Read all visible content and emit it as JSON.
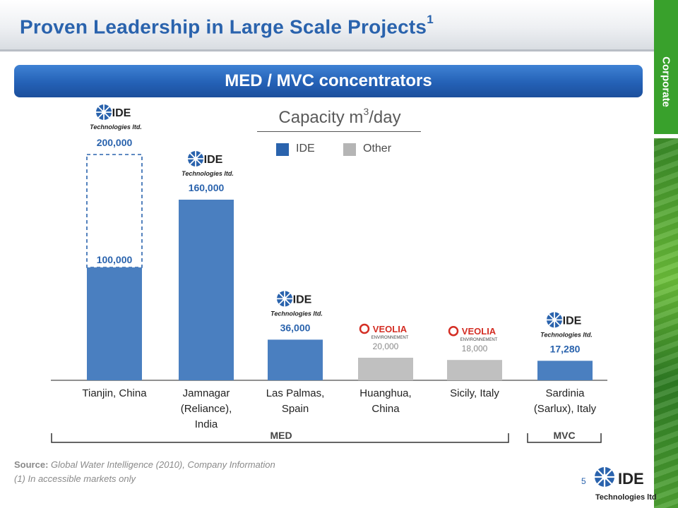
{
  "slide": {
    "title": "Proven Leadership in Large Scale Projects",
    "title_sup": "1",
    "side_tab": "Corporate",
    "banner": "MED / MVC concentrators",
    "capacity_title": "Capacity m",
    "capacity_sup": "3",
    "capacity_unit": "/day",
    "source_label": "Source:",
    "source_text": "Global Water Intelligence (2010), Company Information",
    "note": "(1) In accessible markets only",
    "page_number": "5"
  },
  "logos": {
    "ide_main": "IDE",
    "ide_sub": "Technologies ltd.",
    "veolia_main": "VEOLIA",
    "veolia_sub": "ENVIRONNEMENT"
  },
  "colors": {
    "ide": "#4a7fc0",
    "other": "#c0c0c0",
    "brand_blue": "#2a63ad",
    "green": "#39a12c"
  },
  "chart_data": {
    "type": "bar",
    "legend": [
      "IDE",
      "Other"
    ],
    "categories": [
      "Tianjin, China",
      "Jamnagar (Reliance), India",
      "Las Palmas, Spain",
      "Huanghua, China",
      "Sicily, Italy",
      "Sardinia (Sarlux), Italy"
    ],
    "category_lines": [
      [
        "Tianjin, China"
      ],
      [
        "Jamnagar",
        "(Reliance),",
        "India"
      ],
      [
        "Las Palmas,",
        "Spain"
      ],
      [
        "Huanghua,",
        "China"
      ],
      [
        "Sicily, Italy"
      ],
      [
        "Sardinia",
        "(Sarlux), Italy"
      ]
    ],
    "values": [
      100000,
      160000,
      36000,
      20000,
      18000,
      17280
    ],
    "value_labels": [
      "100,000",
      "160,000",
      "36,000",
      "20,000",
      "18,000",
      "17,280"
    ],
    "supplier": [
      "IDE",
      "IDE",
      "IDE",
      "Other",
      "Other",
      "IDE"
    ],
    "logo": [
      "ide",
      "ide",
      "ide",
      "veolia",
      "veolia",
      "ide"
    ],
    "planned_total": {
      "category": "Tianjin, China",
      "value": 200000,
      "label": "200,000"
    },
    "groups": [
      {
        "label": "MED",
        "from": 0,
        "to": 4
      },
      {
        "label": "MVC",
        "from": 5,
        "to": 5
      }
    ],
    "ylim": [
      0,
      200000
    ]
  }
}
